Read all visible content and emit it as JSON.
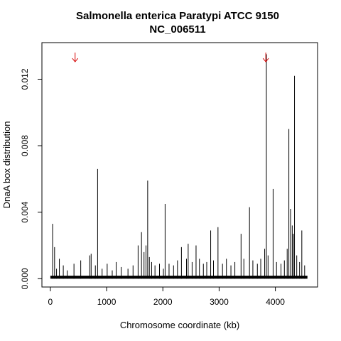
{
  "chart_data": {
    "type": "bar",
    "title": [
      "Salmonella enterica Paratypi ATCC 9150",
      "NC_006511"
    ],
    "xlabel": "Chromosome coordinate (kb)",
    "ylabel": "DnaA box distribution",
    "xlim": [
      -150,
      4750
    ],
    "ylim": [
      -0.0005,
      0.0142
    ],
    "xticks": [
      0,
      1000,
      2000,
      3000,
      4000
    ],
    "yticks": [
      0.0,
      0.004,
      0.008,
      0.012
    ],
    "ytick_labels": [
      "0.000",
      "0.004",
      "0.008",
      "0.012"
    ],
    "grid": false,
    "legend": "none",
    "bar_color": "#000000",
    "arrow_color": "#d40000",
    "arrows_x": [
      440,
      3830
    ],
    "x_extent": [
      0,
      4570
    ],
    "baseline_value": 0.00018,
    "peaks": [
      {
        "x": 40,
        "y": 0.0033
      },
      {
        "x": 75,
        "y": 0.0019
      },
      {
        "x": 110,
        "y": 0.0006
      },
      {
        "x": 160,
        "y": 0.0012
      },
      {
        "x": 230,
        "y": 0.0008
      },
      {
        "x": 300,
        "y": 0.0005
      },
      {
        "x": 420,
        "y": 0.0009
      },
      {
        "x": 540,
        "y": 0.0011
      },
      {
        "x": 700,
        "y": 0.0014
      },
      {
        "x": 725,
        "y": 0.0015
      },
      {
        "x": 800,
        "y": 0.0008
      },
      {
        "x": 840,
        "y": 0.0066
      },
      {
        "x": 920,
        "y": 0.0006
      },
      {
        "x": 1010,
        "y": 0.0009
      },
      {
        "x": 1100,
        "y": 0.0005
      },
      {
        "x": 1170,
        "y": 0.001
      },
      {
        "x": 1260,
        "y": 0.0007
      },
      {
        "x": 1380,
        "y": 0.0006
      },
      {
        "x": 1470,
        "y": 0.0008
      },
      {
        "x": 1560,
        "y": 0.002
      },
      {
        "x": 1620,
        "y": 0.0028
      },
      {
        "x": 1665,
        "y": 0.0016
      },
      {
        "x": 1700,
        "y": 0.002
      },
      {
        "x": 1730,
        "y": 0.0059
      },
      {
        "x": 1760,
        "y": 0.0013
      },
      {
        "x": 1800,
        "y": 0.001
      },
      {
        "x": 1860,
        "y": 0.0008
      },
      {
        "x": 1940,
        "y": 0.0009
      },
      {
        "x": 2010,
        "y": 0.0006
      },
      {
        "x": 2040,
        "y": 0.0045
      },
      {
        "x": 2110,
        "y": 0.0009
      },
      {
        "x": 2190,
        "y": 0.0008
      },
      {
        "x": 2260,
        "y": 0.0011
      },
      {
        "x": 2330,
        "y": 0.0019
      },
      {
        "x": 2420,
        "y": 0.0012
      },
      {
        "x": 2450,
        "y": 0.0021
      },
      {
        "x": 2520,
        "y": 0.001
      },
      {
        "x": 2590,
        "y": 0.002
      },
      {
        "x": 2650,
        "y": 0.0012
      },
      {
        "x": 2720,
        "y": 0.0009
      },
      {
        "x": 2780,
        "y": 0.001
      },
      {
        "x": 2850,
        "y": 0.0029
      },
      {
        "x": 2900,
        "y": 0.0011
      },
      {
        "x": 2980,
        "y": 0.0031
      },
      {
        "x": 3060,
        "y": 0.0009
      },
      {
        "x": 3130,
        "y": 0.0012
      },
      {
        "x": 3210,
        "y": 0.0008
      },
      {
        "x": 3280,
        "y": 0.001
      },
      {
        "x": 3390,
        "y": 0.0027
      },
      {
        "x": 3440,
        "y": 0.0012
      },
      {
        "x": 3540,
        "y": 0.0043
      },
      {
        "x": 3600,
        "y": 0.0011
      },
      {
        "x": 3680,
        "y": 0.0009
      },
      {
        "x": 3740,
        "y": 0.0012
      },
      {
        "x": 3810,
        "y": 0.0018
      },
      {
        "x": 3840,
        "y": 0.0135
      },
      {
        "x": 3870,
        "y": 0.0014
      },
      {
        "x": 3960,
        "y": 0.0054
      },
      {
        "x": 4020,
        "y": 0.001
      },
      {
        "x": 4100,
        "y": 0.0009
      },
      {
        "x": 4160,
        "y": 0.0011
      },
      {
        "x": 4210,
        "y": 0.0018
      },
      {
        "x": 4240,
        "y": 0.009
      },
      {
        "x": 4270,
        "y": 0.0042
      },
      {
        "x": 4300,
        "y": 0.0032
      },
      {
        "x": 4320,
        "y": 0.0027
      },
      {
        "x": 4340,
        "y": 0.0122
      },
      {
        "x": 4380,
        "y": 0.0014
      },
      {
        "x": 4430,
        "y": 0.001
      },
      {
        "x": 4470,
        "y": 0.0029
      },
      {
        "x": 4520,
        "y": 0.0008
      }
    ]
  }
}
